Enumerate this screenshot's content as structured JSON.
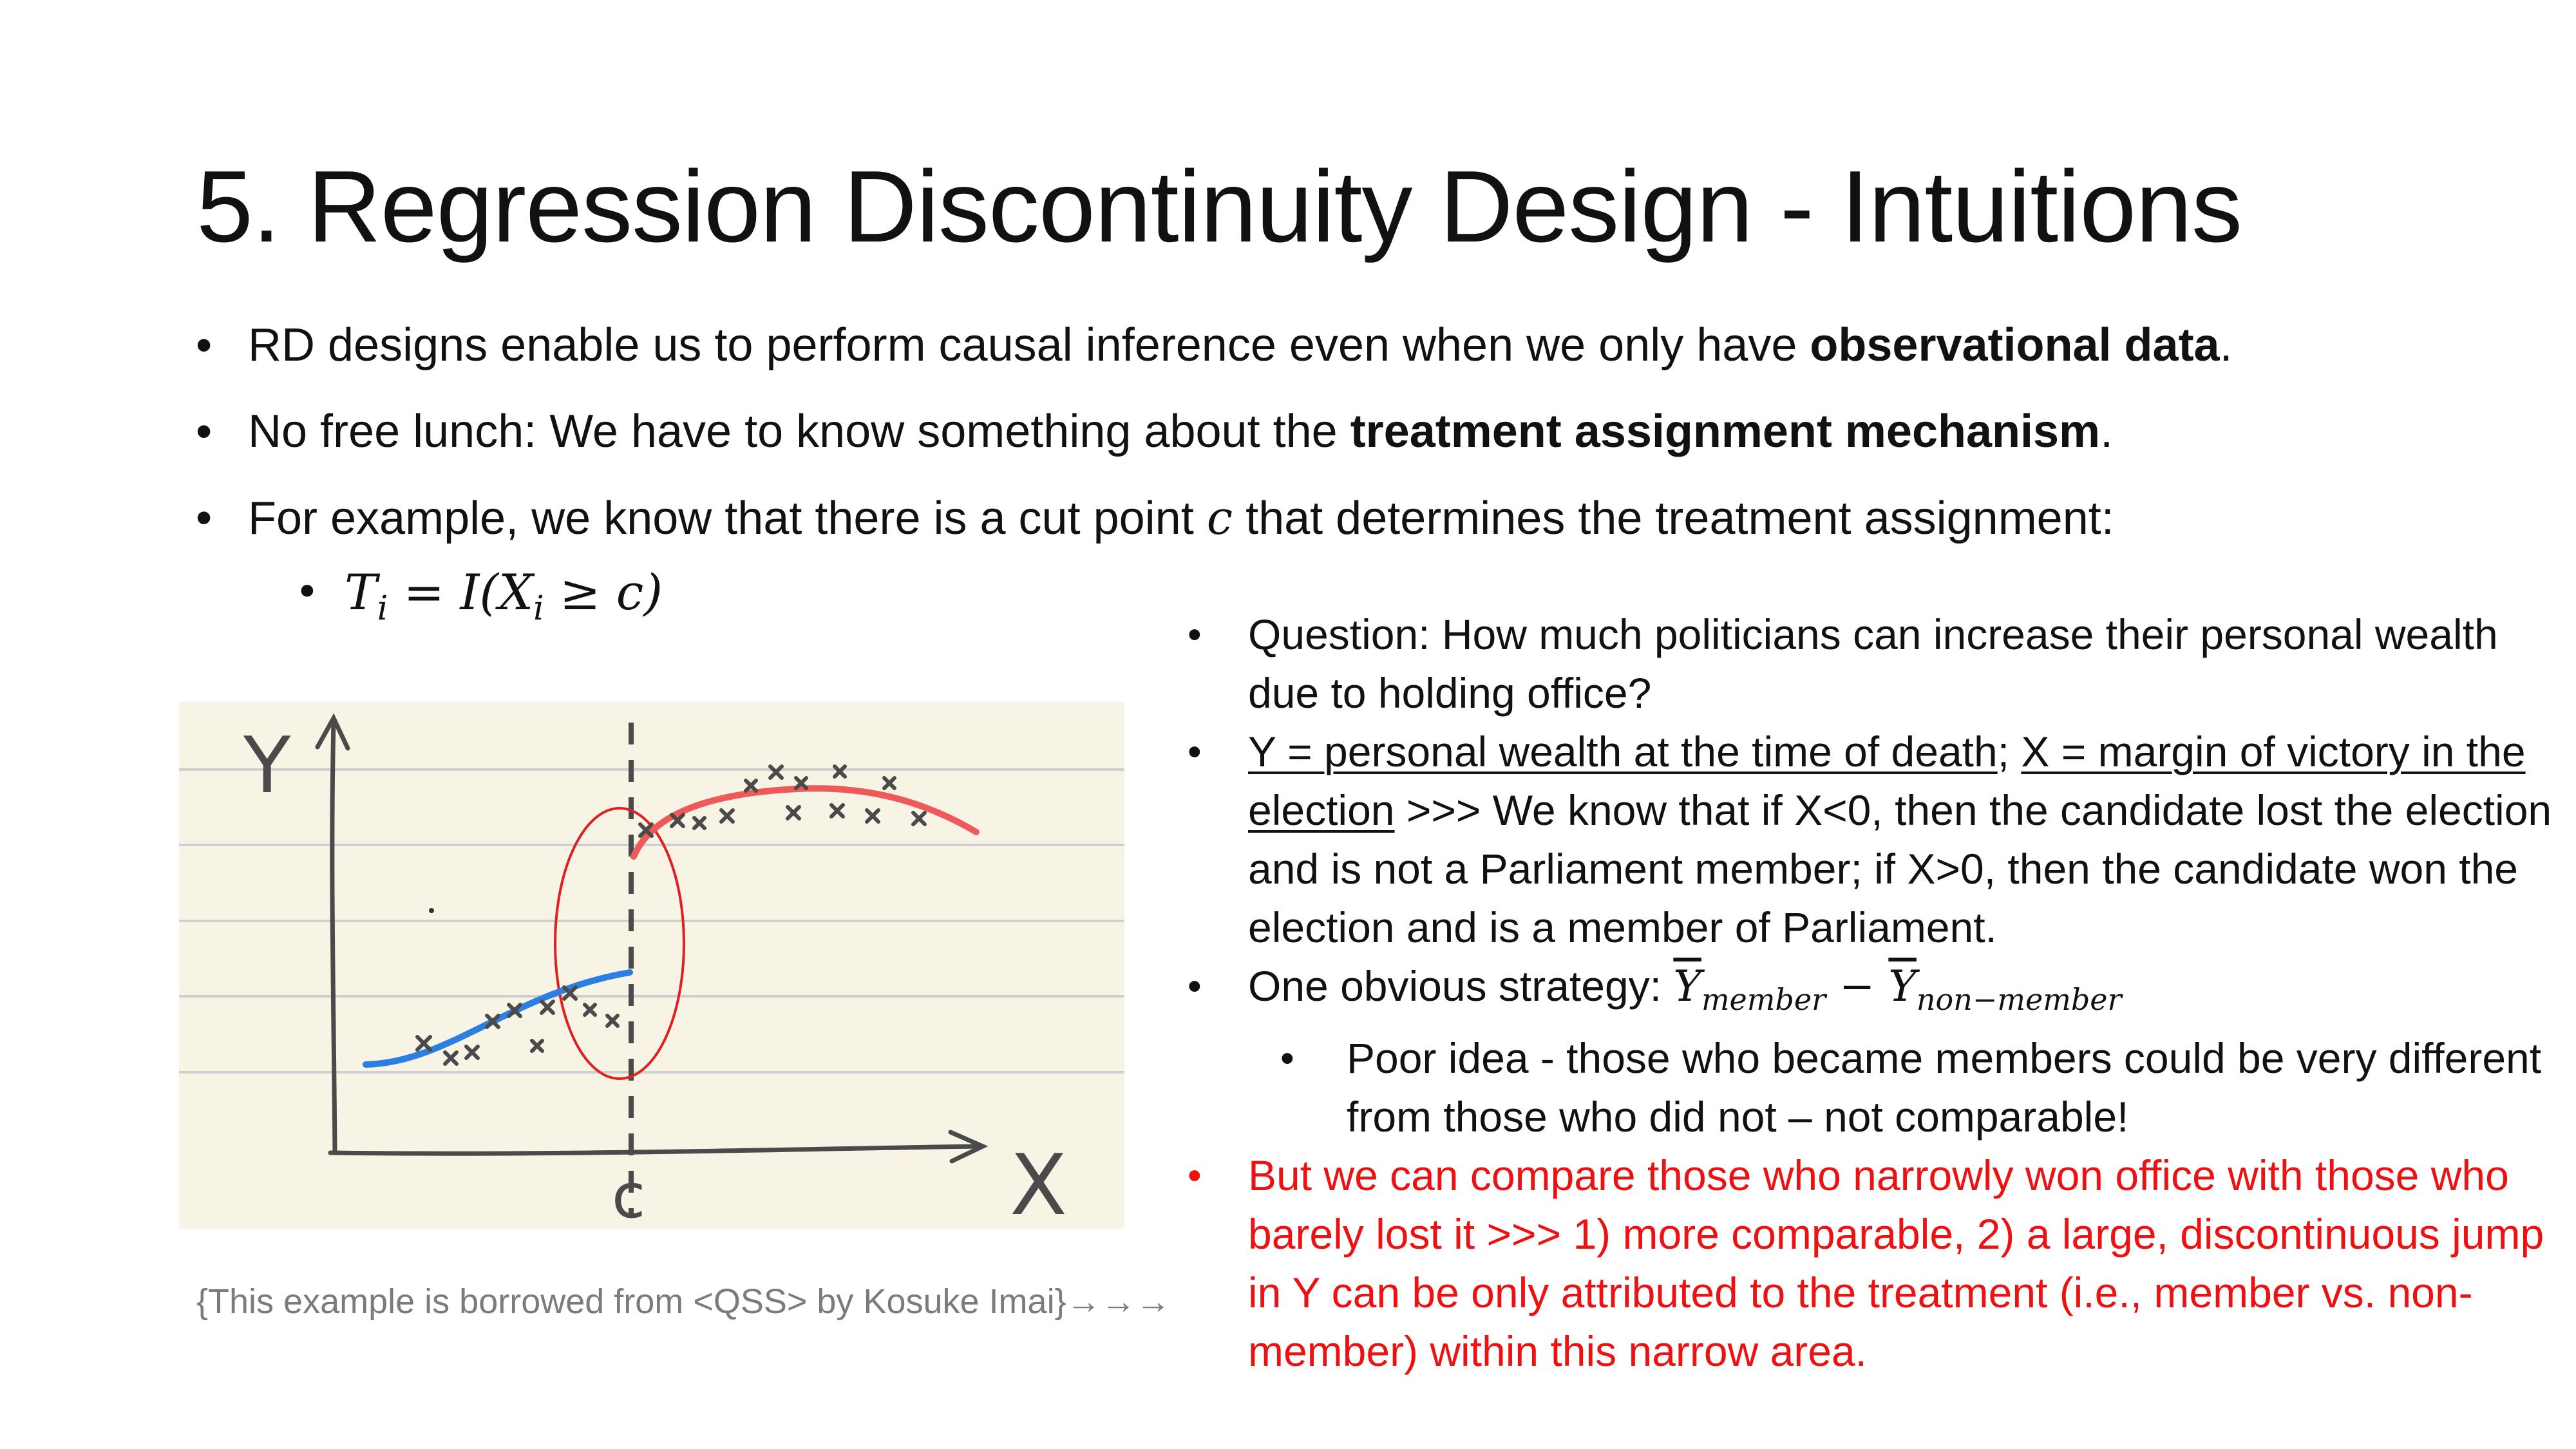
{
  "title": "5. Regression Discontinuity Design - Intuitions",
  "bullets": {
    "b1_pre": "RD designs enable us to perform causal inference even when we only have ",
    "b1_bold": "observational data",
    "b1_post": ".",
    "b2_pre": "No free lunch: We have to know something about the ",
    "b2_bold": "treatment assignment mechanism",
    "b2_post": ".",
    "b3_pre": "For example, we know that there is a cut point ",
    "b3_var": "c",
    "b3_post": " that determines the treatment assignment:",
    "formula_lhs": "T",
    "formula_lhs_sub": "i",
    "formula_rhs_pre": " = I(X",
    "formula_rhs_sub": "i",
    "formula_rhs_post": " ≥ c)"
  },
  "figure": {
    "y_label": "Y",
    "x_label": "X",
    "cut_label": "c",
    "colors": {
      "left_curve": "#2a7fe0",
      "right_curve": "#ee5a5a",
      "circle": "#e02020",
      "paper": "#f7f4e6"
    }
  },
  "caption": "{This example is borrowed from <QSS> by Kosuke Imai}→→→",
  "right": {
    "q": "Question: How much politicians can increase their personal wealth due to holding office?",
    "y_def": "Y = personal wealth at the time of death",
    "sep": "; ",
    "x_def": "X = margin of victory in the election",
    "x_explain": " >>> We know that if X<0, then the candidate lost the election and is not a Parliament member; if X>0, then the candidate won the election and is a member of Parliament.",
    "strategy_pre": "One obvious strategy: ",
    "y_bar": "Y",
    "member_sub": "member",
    "minus": " − ",
    "nonmember_sub": "non−member",
    "poor_idea": "Poor idea - those who became members could be very different from those who did not – not comparable!",
    "red_text": "But we can compare those who narrowly won office with those who barely lost it >>> 1) more comparable, 2) a large, discontinuous jump in Y can be only attributed to the treatment (i.e., member vs. non-member) within this narrow area."
  }
}
